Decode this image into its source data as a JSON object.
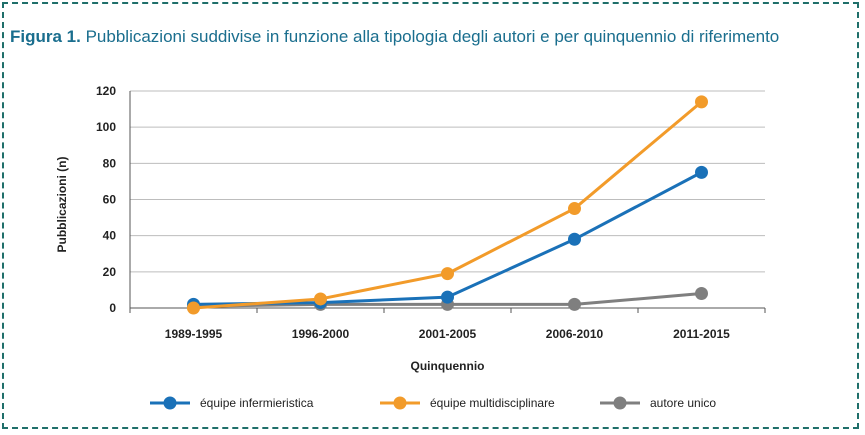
{
  "figure_label": "Figura 1.",
  "title": "Pubblicazioni suddivise in funzione alla tipologia degli autori e per quinquennio di riferimento",
  "colors": {
    "frame": "#1f6f6a",
    "title": "#1a6e8e"
  },
  "chart_data": {
    "type": "line",
    "title": "Pubblicazioni suddivise in funzione alla tipologia degli autori e per quinquennio di riferimento",
    "xlabel": "Quinquennio",
    "ylabel": "Pubblicazioni (n)",
    "categories": [
      "1989-1995",
      "1996-2000",
      "2001-2005",
      "2006-2010",
      "2011-2015"
    ],
    "ylim": [
      0,
      120
    ],
    "yticks": [
      "0",
      "20",
      "40",
      "60",
      "80",
      "100",
      "120"
    ],
    "grid": true,
    "legend_position": "bottom",
    "series": [
      {
        "name": "équipe infermieristica",
        "color": "#1a71b8",
        "values": [
          2,
          3,
          6,
          38,
          75
        ]
      },
      {
        "name": "équipe multidisciplinare",
        "color": "#f29b2a",
        "values": [
          0,
          5,
          19,
          55,
          114
        ]
      },
      {
        "name": "autore unico",
        "color": "#7f7f7f",
        "values": [
          1,
          2,
          2,
          2,
          8
        ]
      }
    ]
  }
}
